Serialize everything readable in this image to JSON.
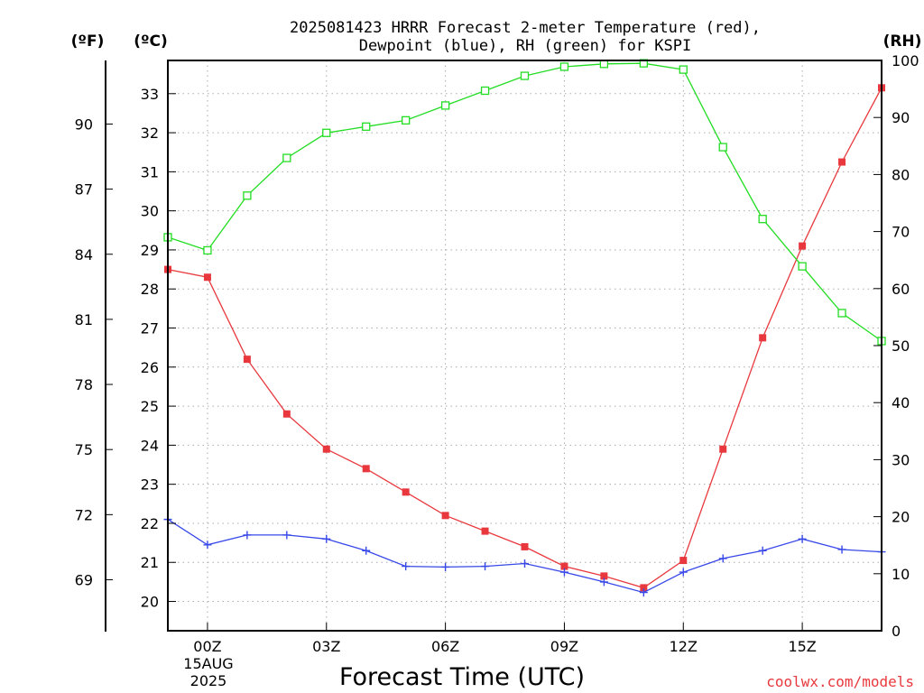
{
  "chart_data": {
    "type": "line",
    "title_lines": [
      "2025081423 HRRR Forecast 2-meter Temperature (red),",
      "Dewpoint (blue), RH (green) for KSPI"
    ],
    "xlabel": "Forecast Time (UTC)",
    "x_date_label": [
      "15AUG",
      "2025"
    ],
    "credit": "coolwx.com/models",
    "units": {
      "fahrenheit": "(ºF)",
      "celsius": "(ºC)",
      "rh": "(RH)"
    },
    "x_hours": [
      -1,
      0,
      1,
      2,
      3,
      4,
      5,
      6,
      7,
      8,
      9,
      10,
      11,
      12,
      13,
      14,
      15,
      16,
      17
    ],
    "xlim": [
      -1,
      17
    ],
    "x_ticks": [
      {
        "hour": 0,
        "label": "00Z"
      },
      {
        "hour": 3,
        "label": "03Z"
      },
      {
        "hour": 6,
        "label": "06Z"
      },
      {
        "hour": 9,
        "label": "09Z"
      },
      {
        "hour": 12,
        "label": "12Z"
      },
      {
        "hour": 15,
        "label": "15Z"
      }
    ],
    "ylim_celsius": [
      19.25,
      33.85
    ],
    "y_ticks_celsius": [
      20,
      21,
      22,
      23,
      24,
      25,
      26,
      27,
      28,
      29,
      30,
      31,
      32,
      33
    ],
    "y_ticks_fahrenheit": [
      69,
      72,
      75,
      78,
      81,
      84,
      87,
      90
    ],
    "ylim_rh": [
      0,
      100
    ],
    "y_ticks_rh": [
      0,
      10,
      20,
      30,
      40,
      50,
      60,
      70,
      80,
      90,
      100
    ],
    "grid": true,
    "series": [
      {
        "name": "Temperature",
        "axis": "celsius",
        "marker": "filled-square",
        "color": "#e8383d",
        "values": [
          28.5,
          28.3,
          26.2,
          24.8,
          23.9,
          23.4,
          22.8,
          22.2,
          21.8,
          21.4,
          20.9,
          20.65,
          20.35,
          21.05,
          23.9,
          26.75,
          29.1,
          31.25,
          33.15
        ]
      },
      {
        "name": "Dewpoint",
        "axis": "celsius",
        "marker": "plus",
        "color": "#3848e8",
        "values": [
          22.1,
          21.45,
          21.7,
          21.7,
          21.6,
          21.3,
          20.9,
          20.88,
          20.9,
          20.97,
          20.75,
          20.5,
          20.23,
          20.75,
          21.1,
          21.3,
          21.6,
          21.33,
          21.27
        ]
      },
      {
        "name": "RH",
        "axis": "rh",
        "marker": "open-square",
        "color": "#22dd22",
        "values": [
          69,
          66.7,
          76.3,
          82.9,
          87.3,
          88.4,
          89.5,
          92.1,
          94.7,
          97.3,
          98.9,
          99.4,
          99.5,
          98.4,
          84.8,
          72.2,
          63.9,
          55.7,
          50.8
        ]
      }
    ]
  }
}
